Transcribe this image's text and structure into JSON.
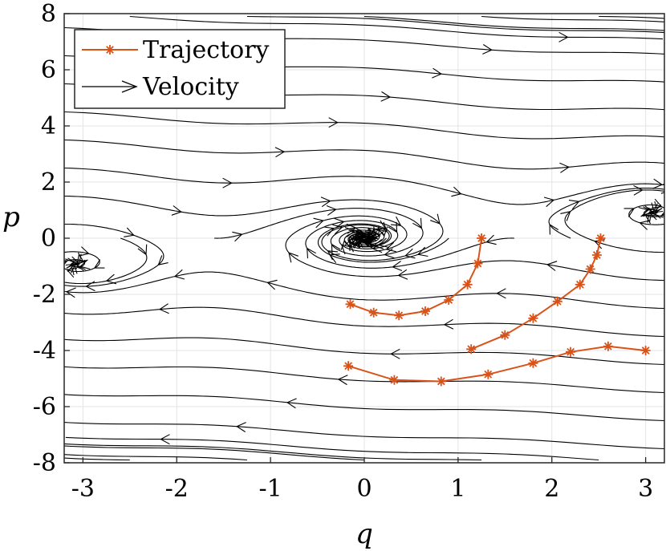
{
  "chart_data": {
    "type": "line",
    "title": "",
    "xlabel": "q",
    "ylabel": "p",
    "xlim": [
      -3.2,
      3.2
    ],
    "ylim": [
      -8,
      8
    ],
    "xticks": [
      -3,
      -2,
      -1,
      0,
      1,
      2,
      3
    ],
    "xtick_labels": [
      "-3",
      "-2",
      "-1",
      "0",
      "1",
      "2",
      "3"
    ],
    "yticks": [
      -8,
      -6,
      -4,
      -2,
      0,
      2,
      4,
      6,
      8
    ],
    "ytick_labels": [
      "-8",
      "-6",
      "-4",
      "-2",
      "0",
      "2",
      "4",
      "6",
      "8"
    ],
    "grid": true,
    "legend_position": "top-left",
    "legend": [
      {
        "label": "Trajectory",
        "color": "#d95319",
        "marker": "*"
      },
      {
        "label": "Velocity",
        "color": "#000000",
        "marker": "arrow"
      }
    ],
    "series": [
      {
        "name": "Trajectory",
        "color": "#d95319",
        "segments": [
          {
            "x": [
              1.25,
              1.21,
              1.1,
              0.9,
              0.65,
              0.37,
              0.1,
              -0.15
            ],
            "y": [
              0.0,
              -0.9,
              -1.65,
              -2.2,
              -2.6,
              -2.75,
              -2.65,
              -2.35
            ]
          },
          {
            "x": [
              2.52,
              2.48,
              2.41,
              2.3,
              2.06,
              1.8,
              1.5,
              1.14
            ],
            "y": [
              0.0,
              -0.6,
              -1.1,
              -1.65,
              -2.25,
              -2.85,
              -3.45,
              -3.95
            ]
          },
          {
            "x": [
              3.0,
              2.6,
              2.2,
              1.8,
              1.32,
              0.82,
              0.32,
              -0.17
            ],
            "y": [
              -4.0,
              -3.85,
              -4.05,
              -4.45,
              -4.85,
              -5.1,
              -5.05,
              -4.55
            ]
          }
        ]
      },
      {
        "name": "Velocity",
        "color": "#000000",
        "field": "dq/dt = p - 0.3 q, dp/dt = -sin(2 q) - 0.15 p"
      }
    ]
  }
}
